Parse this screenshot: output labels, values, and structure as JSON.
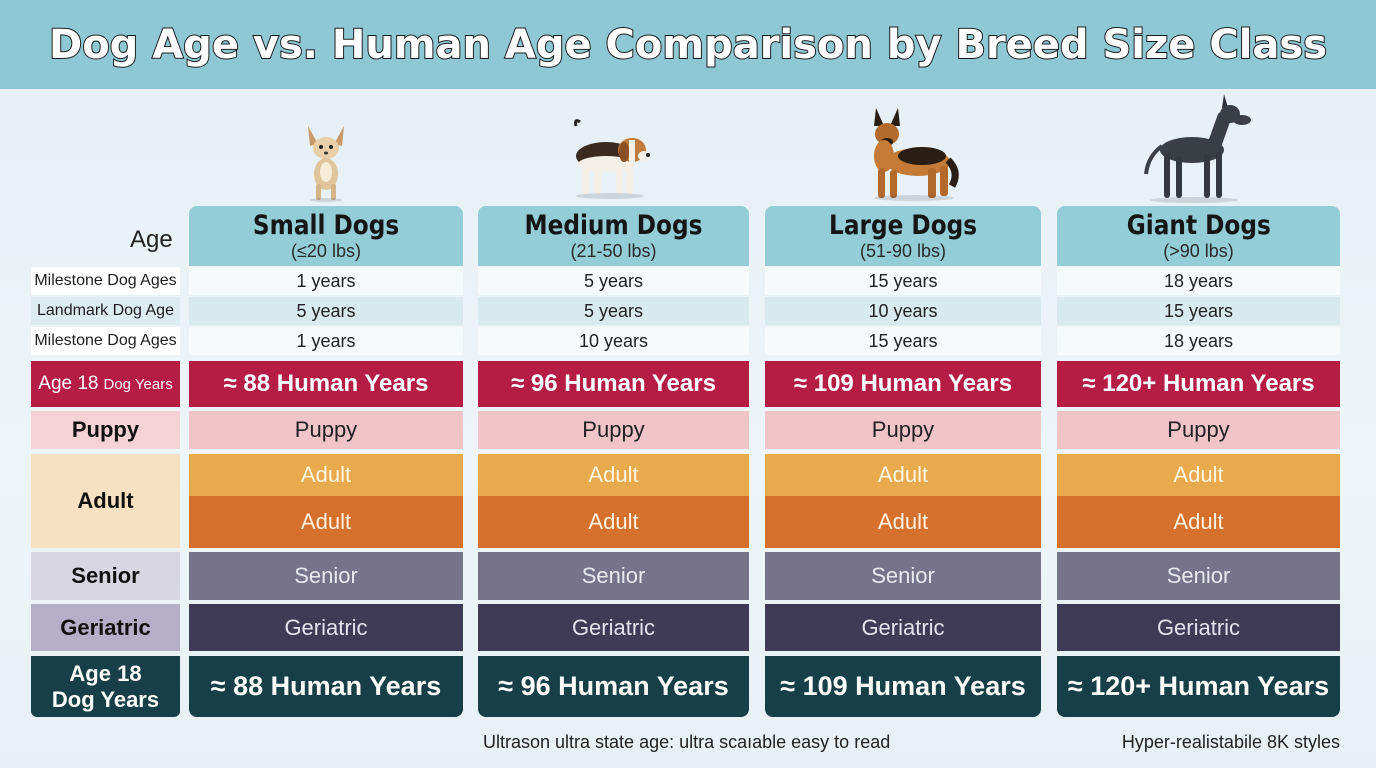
{
  "title": "Dog Age vs. Human Age Comparison by Breed Size Class",
  "age_header": "Age",
  "columns": [
    {
      "name": "Small Dogs",
      "range": "(≤20 lbs)",
      "icon": "chihuahua-icon",
      "milestones": [
        "1 years",
        "5 years",
        "1 years"
      ],
      "human_years": "≈ 88 Human Years",
      "puppy": "Puppy",
      "adult1": "Adult",
      "adult2": "Adult",
      "senior": "Senior",
      "geriatric": "Geriatric",
      "final": "≈ 88 Human Years"
    },
    {
      "name": "Medium Dogs",
      "range": "(21-50 lbs)",
      "icon": "beagle-icon",
      "milestones": [
        "5 years",
        "5 years",
        "10 years"
      ],
      "human_years": "≈ 96 Human Years",
      "puppy": "Puppy",
      "adult1": "Adult",
      "adult2": "Adult",
      "senior": "Senior",
      "geriatric": "Geriatric",
      "final": "≈ 96 Human Years"
    },
    {
      "name": "Large Dogs",
      "range": "(51-90 lbs)",
      "icon": "german-shepherd-icon",
      "milestones": [
        "15 years",
        "10 years",
        "15 years"
      ],
      "human_years": "≈ 109 Human Years",
      "puppy": "Puppy",
      "adult1": "Adult",
      "adult2": "Adult",
      "senior": "Senior",
      "geriatric": "Geriatric",
      "final": "≈ 109 Human Years"
    },
    {
      "name": "Giant Dogs",
      "range": "(>90 lbs)",
      "icon": "great-dane-icon",
      "milestones": [
        "18 years",
        "15 years",
        "18 years"
      ],
      "human_years": "≈ 120+ Human Years",
      "puppy": "Puppy",
      "adult1": "Adult",
      "adult2": "Adult",
      "senior": "Senior",
      "geriatric": "Geriatric",
      "final": "≈ 120+ Human Years"
    }
  ],
  "row_labels": {
    "milestones": [
      "Milestone Dog Ages",
      "Landmark Dog Age",
      "Milestone Dog Ages"
    ],
    "human_years_main": "Age 18",
    "human_years_small": "Dog Years",
    "puppy": "Puppy",
    "adult": "Adult",
    "senior": "Senior",
    "geriatric": "Geriatric",
    "final_line1": "Age 18",
    "final_line2": "Dog Years"
  },
  "footer": {
    "left": "Ultrason ultra state age: ultra scaıable easy to read",
    "right": "Hyper-realistabile 8K styles"
  },
  "colors": {
    "banner": "#8ec8d4",
    "header": "#93cdd8",
    "human_years": "#b51d45",
    "puppy": "#f1c4c8",
    "adult_light": "#e9aa4e",
    "adult_dark": "#d6702d",
    "senior": "#77748a",
    "geriatric": "#3f3a55",
    "final": "#173f48"
  }
}
